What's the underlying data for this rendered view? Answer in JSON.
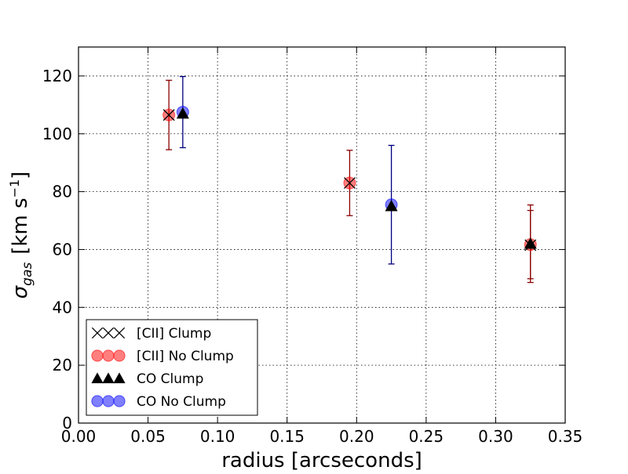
{
  "chart_data": {
    "type": "scatter",
    "title": "",
    "xlabel": "radius [arcseconds]",
    "ylabel_prefix": "σ",
    "ylabel_subscript": "gas",
    "ylabel_units_main": "[km s",
    "ylabel_units_sup": "−1",
    "ylabel_units_close": "]",
    "xlim": [
      0.0,
      0.35
    ],
    "ylim": [
      0,
      130
    ],
    "xticks": [
      "0.00",
      "0.05",
      "0.10",
      "0.15",
      "0.20",
      "0.25",
      "0.30",
      "0.35"
    ],
    "xtick_values": [
      0.0,
      0.05,
      0.1,
      0.15,
      0.2,
      0.25,
      0.3,
      0.35
    ],
    "yticks": [
      "0",
      "20",
      "40",
      "60",
      "80",
      "100",
      "120"
    ],
    "ytick_values": [
      0,
      20,
      40,
      60,
      80,
      100,
      120
    ],
    "grid": true,
    "legend_position": "lower-left",
    "series": [
      {
        "name": "[CII] Clump",
        "marker": "x",
        "color": "#000000",
        "points": [
          {
            "x": 0.065,
            "y": 106.5
          },
          {
            "x": 0.195,
            "y": 83.0
          },
          {
            "x": 0.325,
            "y": 61.5
          }
        ]
      },
      {
        "name": "[CII] No Clump",
        "marker": "circle",
        "color": "#ff0000",
        "error_color": "#8b0000",
        "points": [
          {
            "x": 0.065,
            "y": 106.5,
            "err": 12.0
          },
          {
            "x": 0.195,
            "y": 83.0,
            "err": 11.3
          },
          {
            "x": 0.325,
            "y": 61.7,
            "err": 11.8
          }
        ]
      },
      {
        "name": "CO Clump",
        "marker": "triangle",
        "color": "#000000",
        "error_color": "#8b0000",
        "points": [
          {
            "x": 0.075,
            "y": 107.0
          },
          {
            "x": 0.225,
            "y": 75.0
          },
          {
            "x": 0.325,
            "y": 62.0,
            "err": 13.4
          }
        ]
      },
      {
        "name": "CO No Clump",
        "marker": "circle",
        "color": "#0000ff",
        "error_color": "#000080",
        "points": [
          {
            "x": 0.075,
            "y": 107.5,
            "err": 12.3
          },
          {
            "x": 0.225,
            "y": 75.5,
            "err": 20.5
          }
        ]
      }
    ]
  }
}
